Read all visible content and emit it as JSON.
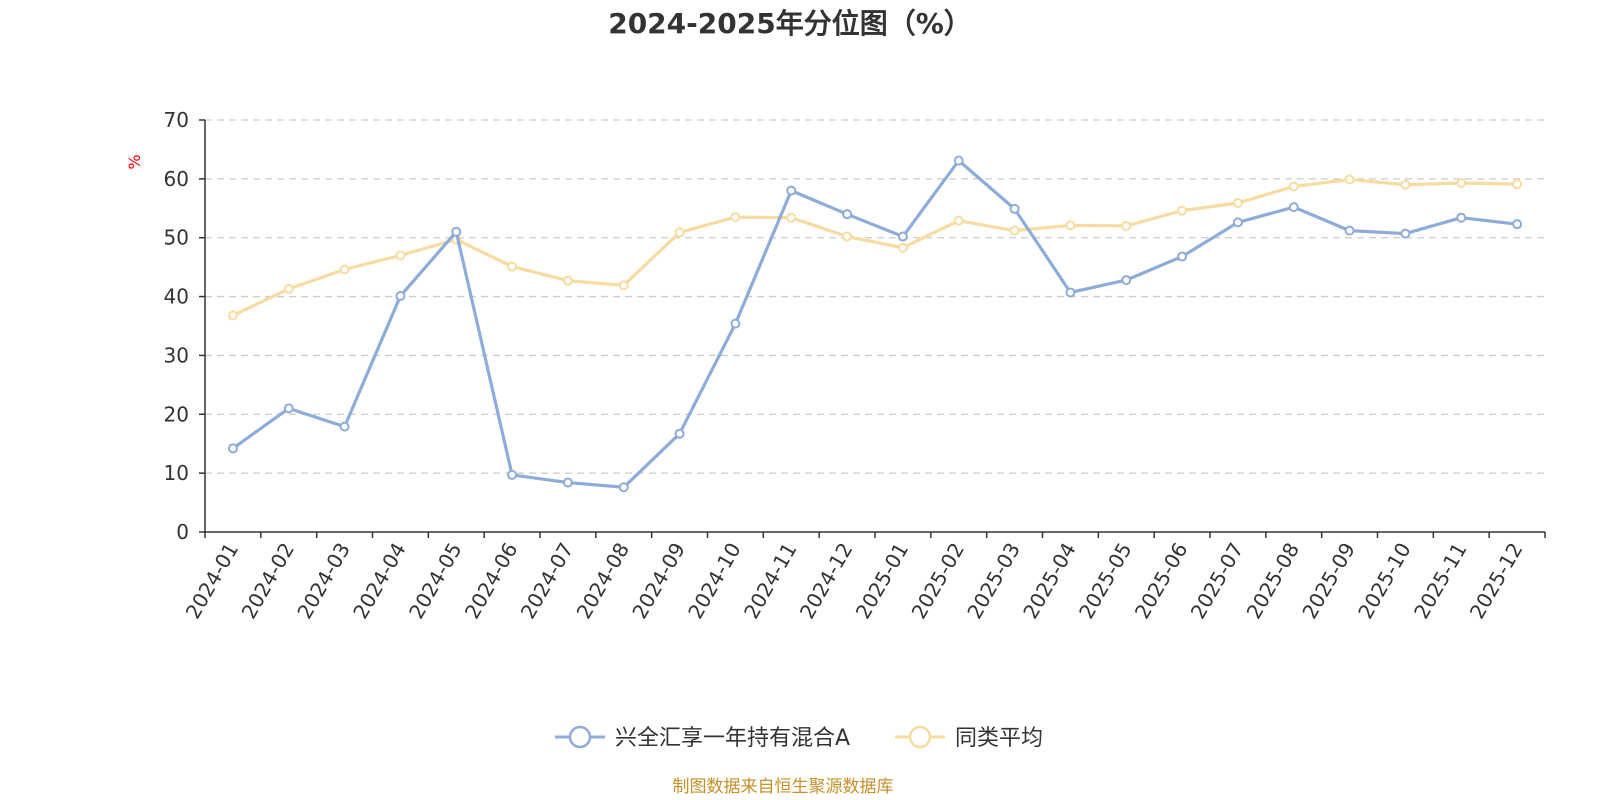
{
  "title": "2024-2025年分位图（%）",
  "source": "制图数据来自恒生聚源数据库",
  "colors": {
    "series_fund": "#8eacd9",
    "series_avg": "#f8dba0",
    "axis": "#333333",
    "grid": "#cccccc",
    "source_text": "#c8902a",
    "ylabel": "#ff0000"
  },
  "chart_data": {
    "type": "line",
    "title": "2024-2025年分位图（%）",
    "xlabel": "",
    "ylabel": "%",
    "ylim": [
      0,
      70
    ],
    "yticks": [
      0,
      10,
      20,
      30,
      40,
      50,
      60,
      70
    ],
    "grid": true,
    "legend_position": "bottom-center",
    "categories": [
      "2024-01",
      "2024-02",
      "2024-03",
      "2024-04",
      "2024-05",
      "2024-06",
      "2024-07",
      "2024-08",
      "2024-09",
      "2024-10",
      "2024-11",
      "2024-12",
      "2025-01",
      "2025-02",
      "2025-03",
      "2025-04",
      "2025-05",
      "2025-06",
      "2025-07",
      "2025-08",
      "2025-09",
      "2025-10",
      "2025-11",
      "2025-12"
    ],
    "series": [
      {
        "name": "兴全汇享一年持有混合A",
        "color": "#8eacd9",
        "values": [
          14.2,
          21.0,
          17.9,
          40.1,
          51.0,
          9.7,
          8.4,
          7.6,
          16.7,
          35.4,
          58.0,
          54.0,
          50.2,
          63.1,
          54.9,
          40.7,
          42.8,
          46.8,
          52.6,
          55.2,
          51.2,
          50.7,
          53.4,
          52.3
        ]
      },
      {
        "name": "同类平均",
        "color": "#f8dba0",
        "values": [
          36.8,
          41.3,
          44.6,
          47.0,
          49.7,
          45.1,
          42.7,
          41.9,
          50.9,
          53.5,
          53.4,
          50.2,
          48.3,
          52.9,
          51.2,
          52.1,
          52.0,
          54.6,
          55.9,
          58.7,
          59.9,
          59.0,
          59.3,
          59.1
        ]
      }
    ]
  }
}
